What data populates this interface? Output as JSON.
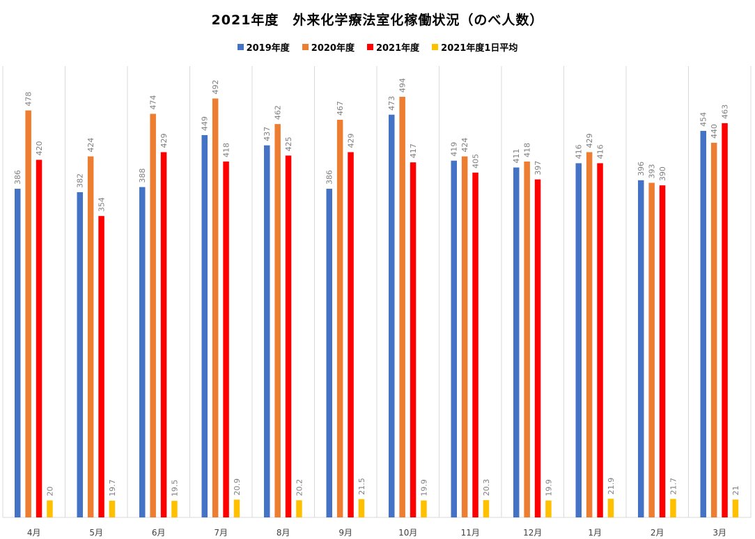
{
  "chart_data": {
    "type": "bar",
    "title": "2021年度　外来化学療法室化稼働状況（のべ人数）",
    "categories": [
      "4月",
      "5月",
      "6月",
      "7月",
      "8月",
      "9月",
      "10月",
      "11月",
      "12月",
      "1月",
      "2月",
      "3月"
    ],
    "series": [
      {
        "name": "2019年度",
        "color": "#4472c4",
        "values": [
          386,
          382,
          388,
          449,
          437,
          386,
          473,
          419,
          411,
          416,
          396,
          454
        ]
      },
      {
        "name": "2020年度",
        "color": "#ed7d31",
        "values": [
          478,
          424,
          474,
          492,
          462,
          467,
          494,
          424,
          418,
          429,
          393,
          440
        ]
      },
      {
        "name": "2021年度",
        "color": "#ff0000",
        "values": [
          420,
          354,
          429,
          418,
          425,
          429,
          417,
          405,
          397,
          416,
          390,
          463
        ]
      },
      {
        "name": "2021年度1日平均",
        "color": "#ffc000",
        "values": [
          20,
          19.7,
          19.5,
          20.9,
          20.2,
          21.5,
          19.9,
          20.3,
          19.9,
          21.9,
          21.7,
          21
        ]
      }
    ],
    "ylim": [
      0,
      530
    ],
    "grid": "vertical",
    "legend_position": "top"
  }
}
